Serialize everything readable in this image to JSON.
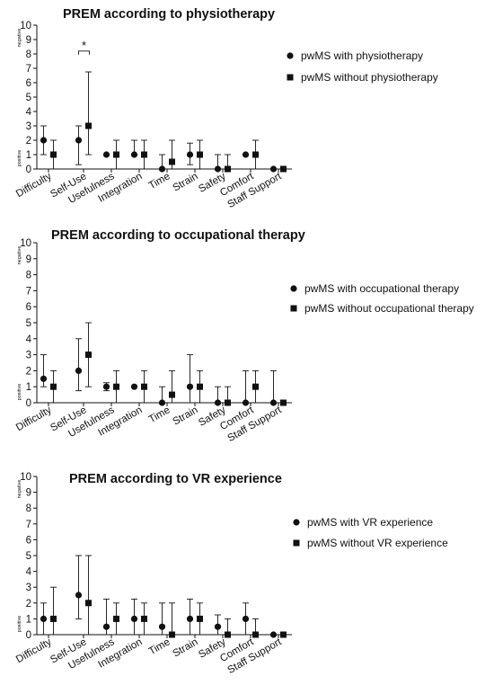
{
  "chart_data": [
    {
      "type": "scatter",
      "title": "PREM according to physiotherapy",
      "ylabel_top": "negative",
      "ylabel_bottom": "positive",
      "ylim": [
        0,
        10
      ],
      "yticks": [
        0,
        1,
        2,
        3,
        4,
        5,
        6,
        7,
        8,
        9,
        10
      ],
      "categories": [
        "Difficulty",
        "Self-Use",
        "Usefulness",
        "Integration",
        "Time",
        "Strain",
        "Safety",
        "Comfort",
        "Staff Support"
      ],
      "series": [
        {
          "name": "pwMS with physiotherapy",
          "marker": "circle",
          "values": [
            2,
            2,
            1,
            1,
            0,
            1,
            0,
            1,
            0
          ],
          "lower": [
            1,
            0.3,
            1,
            1,
            0,
            0.3,
            0,
            1,
            0
          ],
          "upper": [
            3,
            3,
            1,
            2,
            1,
            1.8,
            1,
            1,
            0
          ]
        },
        {
          "name": "pwMS without physiotherapy",
          "marker": "square",
          "values": [
            1,
            3,
            1,
            1,
            0.5,
            1,
            0,
            1,
            0
          ],
          "lower": [
            0,
            1,
            0,
            0,
            0,
            0,
            0,
            0,
            0
          ],
          "upper": [
            2,
            6.75,
            2,
            2,
            2,
            2,
            1,
            2,
            0
          ]
        }
      ],
      "annotations": [
        {
          "text": "*",
          "between": "Self-Use"
        }
      ]
    },
    {
      "type": "scatter",
      "title": "PREM according to occupational therapy",
      "ylabel_top": "negative",
      "ylabel_bottom": "positive",
      "ylim": [
        0,
        10
      ],
      "yticks": [
        0,
        1,
        2,
        3,
        4,
        5,
        6,
        7,
        8,
        9,
        10
      ],
      "categories": [
        "Difficulty",
        "Self-Use",
        "Usefulness",
        "Integration",
        "Time",
        "Strain",
        "Safety",
        "Comfort",
        "Staff Support"
      ],
      "series": [
        {
          "name": "pwMS with occupational therapy",
          "marker": "circle",
          "values": [
            1.5,
            2,
            1,
            1,
            0,
            1,
            0,
            0,
            0
          ],
          "lower": [
            1,
            0.75,
            0.75,
            1,
            0,
            0,
            0,
            0,
            0
          ],
          "upper": [
            3,
            4,
            1.25,
            1,
            1,
            3,
            1,
            2,
            2
          ]
        },
        {
          "name": "pwMS without occupational therapy",
          "marker": "square",
          "values": [
            1,
            3,
            1,
            1,
            0.5,
            1,
            0,
            1,
            0
          ],
          "lower": [
            0,
            1,
            0,
            0,
            0,
            0,
            0,
            0,
            0
          ],
          "upper": [
            2,
            5,
            2,
            2,
            2,
            2,
            1,
            2,
            0
          ]
        }
      ]
    },
    {
      "type": "scatter",
      "title": "PREM according to VR experience",
      "ylabel_top": "negative",
      "ylabel_bottom": "positive",
      "ylim": [
        0,
        10
      ],
      "yticks": [
        0,
        1,
        2,
        3,
        4,
        5,
        6,
        7,
        8,
        9,
        10
      ],
      "categories": [
        "Difficulty",
        "Self-Use",
        "Usefulness",
        "Integration",
        "Time",
        "Strain",
        "Safety",
        "Comfort",
        "Staff Support"
      ],
      "series": [
        {
          "name": "pwMS with VR experience",
          "marker": "circle",
          "values": [
            1,
            2.5,
            0.5,
            1,
            0.5,
            1,
            0.5,
            1,
            0
          ],
          "lower": [
            0,
            1,
            0,
            0,
            0,
            0,
            0,
            0,
            0
          ],
          "upper": [
            2,
            5,
            2.25,
            2.25,
            2,
            2.25,
            1.25,
            2,
            0
          ]
        },
        {
          "name": "pwMS without VR experience",
          "marker": "square",
          "values": [
            1,
            2,
            1,
            1,
            0,
            1,
            0,
            0,
            0
          ],
          "lower": [
            0,
            0,
            0,
            0,
            0,
            0,
            0,
            0,
            0
          ],
          "upper": [
            3,
            5,
            2,
            2,
            2,
            2,
            1,
            1,
            0
          ]
        }
      ]
    }
  ]
}
